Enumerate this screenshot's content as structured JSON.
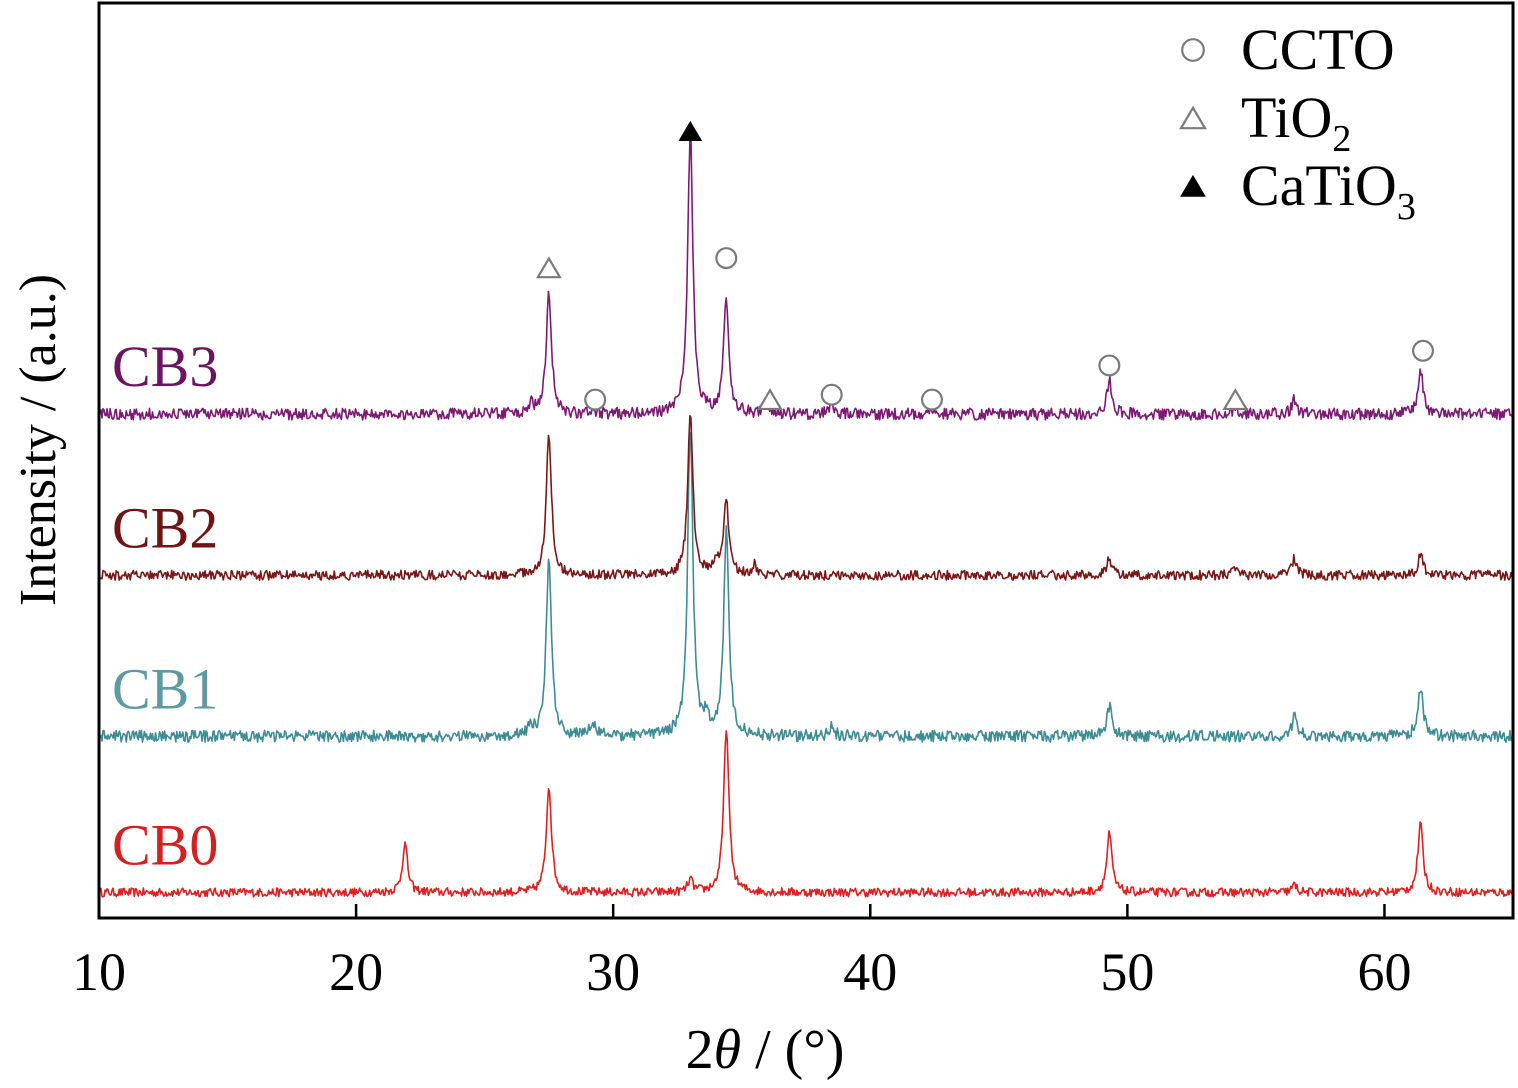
{
  "chart_data": {
    "type": "line",
    "xlabel_prefix": "2",
    "xlabel_var": "θ",
    "xlabel_suffix": " / (°)",
    "ylabel": "Intensity / (a.u.)",
    "xlim": [
      10,
      65
    ],
    "xticks": [
      10,
      20,
      30,
      40,
      50,
      60
    ],
    "tick_labels": [
      "10",
      "20",
      "30",
      "40",
      "50",
      "60"
    ],
    "grid": false,
    "legend_position": "top-right",
    "legend": [
      {
        "marker": "open-circle",
        "base": "CCTO",
        "sub": ""
      },
      {
        "marker": "open-triangle",
        "base": "TiO",
        "sub": "2"
      },
      {
        "marker": "filled-triangle",
        "base": "CaTiO",
        "sub": "3"
      }
    ],
    "series": [
      {
        "name": "CB0",
        "color": "#e02020",
        "label_color": "#d42020",
        "baseline": 4,
        "noise": 0.9,
        "peaks": [
          {
            "x": 21.9,
            "h": 10
          },
          {
            "x": 27.5,
            "h": 22
          },
          {
            "x": 33.0,
            "h": 2.5
          },
          {
            "x": 34.4,
            "h": 34
          },
          {
            "x": 49.3,
            "h": 12
          },
          {
            "x": 56.5,
            "h": 1.5
          },
          {
            "x": 61.4,
            "h": 14
          }
        ]
      },
      {
        "name": "CB1",
        "color": "#3e8c94",
        "label_color": "#5f9aa2",
        "baseline": 36,
        "noise": 1.2,
        "peaks": [
          {
            "x": 26.8,
            "h": 2
          },
          {
            "x": 27.5,
            "h": 37
          },
          {
            "x": 29.2,
            "h": 3
          },
          {
            "x": 33.0,
            "h": 64
          },
          {
            "x": 33.6,
            "h": 3
          },
          {
            "x": 34.4,
            "h": 42
          },
          {
            "x": 38.5,
            "h": 2
          },
          {
            "x": 49.3,
            "h": 6
          },
          {
            "x": 56.5,
            "h": 4
          },
          {
            "x": 61.4,
            "h": 10
          }
        ]
      },
      {
        "name": "CB2",
        "color": "#7a1818",
        "label_color": "#6e1414",
        "baseline": 69,
        "noise": 1.0,
        "peaks": [
          {
            "x": 27.5,
            "h": 29
          },
          {
            "x": 33.0,
            "h": 33
          },
          {
            "x": 34.0,
            "h": 3
          },
          {
            "x": 34.4,
            "h": 15
          },
          {
            "x": 35.5,
            "h": 2
          },
          {
            "x": 49.3,
            "h": 3.5
          },
          {
            "x": 54.2,
            "h": 1.5
          },
          {
            "x": 56.5,
            "h": 3.5
          },
          {
            "x": 61.4,
            "h": 4
          }
        ]
      },
      {
        "name": "CB3",
        "color": "#7d1a76",
        "label_color": "#6b1560",
        "baseline": 102,
        "noise": 1.2,
        "peaks": [
          {
            "x": 26.8,
            "h": 2
          },
          {
            "x": 27.5,
            "h": 25
          },
          {
            "x": 29.2,
            "h": 1
          },
          {
            "x": 33.0,
            "h": 58
          },
          {
            "x": 34.4,
            "h": 24
          },
          {
            "x": 36.0,
            "h": 2
          },
          {
            "x": 38.5,
            "h": 2
          },
          {
            "x": 42.4,
            "h": 1
          },
          {
            "x": 49.3,
            "h": 7
          },
          {
            "x": 54.2,
            "h": 1
          },
          {
            "x": 56.5,
            "h": 3
          },
          {
            "x": 61.4,
            "h": 9
          }
        ]
      }
    ],
    "annotations": [
      {
        "x": 27.5,
        "y": 132,
        "marker": "open-triangle"
      },
      {
        "x": 29.3,
        "y": 105,
        "marker": "open-circle"
      },
      {
        "x": 33.0,
        "y": 160,
        "marker": "filled-triangle"
      },
      {
        "x": 34.4,
        "y": 134,
        "marker": "open-circle"
      },
      {
        "x": 36.1,
        "y": 105,
        "marker": "open-triangle"
      },
      {
        "x": 38.5,
        "y": 106,
        "marker": "open-circle"
      },
      {
        "x": 42.4,
        "y": 105,
        "marker": "open-circle"
      },
      {
        "x": 49.3,
        "y": 112,
        "marker": "open-circle"
      },
      {
        "x": 54.2,
        "y": 105,
        "marker": "open-triangle"
      },
      {
        "x": 61.5,
        "y": 115,
        "marker": "open-circle"
      }
    ]
  }
}
